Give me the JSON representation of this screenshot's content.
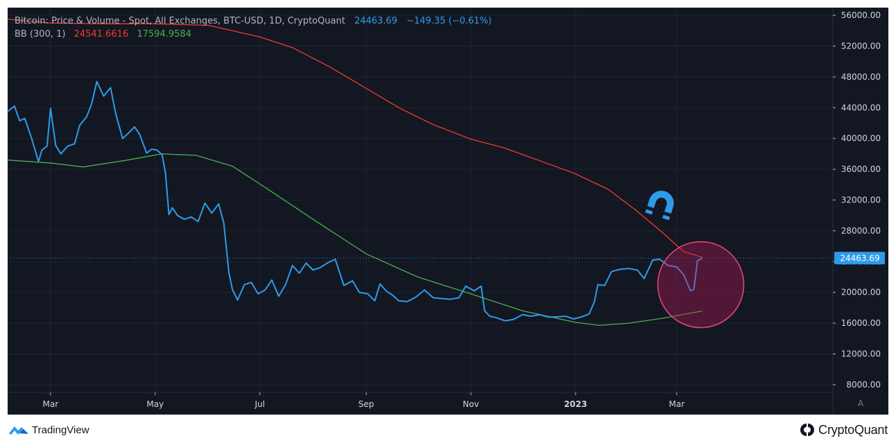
{
  "header": {
    "title": "Bitcoin: Price & Volume - Spot, All Exchanges, BTC-USD, 1D, CryptoQuant",
    "last_price": "24463.69",
    "change": "−149.35 (−0.61%)",
    "indicator_name": "BB (300, 1)",
    "upper_band_value": "24541.6616",
    "lower_band_value": "17594.9584"
  },
  "price_tag": "24463.69",
  "auto_scale_label": "A",
  "footer": {
    "tradingview_label": "TradingView",
    "cryptoquant_label": "CryptoQuant"
  },
  "colors": {
    "background": "#131722",
    "price_line": "#2e9bea",
    "upper_band": "#f23c2f",
    "lower_band": "#4caf50",
    "highlight": "#c2185b",
    "magnet": "#2e9bea"
  },
  "icons": [
    "magnet-icon",
    "tradingview-logo-icon",
    "cryptoquant-logo-icon"
  ],
  "chart_data": {
    "type": "line",
    "title": "Bitcoin: Price & Volume - Spot, All Exchanges, BTC-USD, 1D, CryptoQuant",
    "xlabel": "",
    "ylabel": "",
    "x_ticks": [
      "Mar",
      "May",
      "Jul",
      "Sep",
      "Nov",
      "2023",
      "Mar"
    ],
    "y_ticks": [
      "8000.00",
      "12000.00",
      "16000.00",
      "20000.00",
      "24000.00",
      "28000.00",
      "32000.00",
      "36000.00",
      "40000.00",
      "44000.00",
      "48000.00",
      "52000.00",
      "56000.00"
    ],
    "x_range": [
      "2022-02-04",
      "2023-05-31"
    ],
    "ylim": [
      7000,
      57000
    ],
    "grid": true,
    "legend": "top-left",
    "series": [
      {
        "name": "Price",
        "color": "#2e9bea",
        "x": [
          "2022-02-04",
          "2022-02-08",
          "2022-02-11",
          "2022-02-14",
          "2022-02-18",
          "2022-02-22",
          "2022-02-24",
          "2022-02-27",
          "2022-03-01",
          "2022-03-04",
          "2022-03-07",
          "2022-03-11",
          "2022-03-15",
          "2022-03-18",
          "2022-03-22",
          "2022-03-25",
          "2022-03-28",
          "2022-04-01",
          "2022-04-05",
          "2022-04-08",
          "2022-04-12",
          "2022-04-15",
          "2022-04-19",
          "2022-04-22",
          "2022-04-26",
          "2022-04-29",
          "2022-05-02",
          "2022-05-05",
          "2022-05-07",
          "2022-05-09",
          "2022-05-11",
          "2022-05-14",
          "2022-05-18",
          "2022-05-22",
          "2022-05-26",
          "2022-05-30",
          "2022-06-03",
          "2022-06-07",
          "2022-06-10",
          "2022-06-13",
          "2022-06-15",
          "2022-06-18",
          "2022-06-22",
          "2022-06-26",
          "2022-06-30",
          "2022-07-04",
          "2022-07-08",
          "2022-07-12",
          "2022-07-16",
          "2022-07-20",
          "2022-07-24",
          "2022-07-28",
          "2022-08-01",
          "2022-08-05",
          "2022-08-10",
          "2022-08-14",
          "2022-08-19",
          "2022-08-24",
          "2022-08-28",
          "2022-09-02",
          "2022-09-06",
          "2022-09-09",
          "2022-09-13",
          "2022-09-16",
          "2022-09-20",
          "2022-09-25",
          "2022-09-30",
          "2022-10-05",
          "2022-10-10",
          "2022-10-15",
          "2022-10-20",
          "2022-10-25",
          "2022-10-29",
          "2022-11-03",
          "2022-11-07",
          "2022-11-09",
          "2022-11-12",
          "2022-11-16",
          "2022-11-21",
          "2022-11-26",
          "2022-12-01",
          "2022-12-06",
          "2022-12-11",
          "2022-12-16",
          "2022-12-20",
          "2022-12-26",
          "2022-12-31",
          "2023-01-05",
          "2023-01-09",
          "2023-01-12",
          "2023-01-14",
          "2023-01-18",
          "2023-01-22",
          "2023-01-27",
          "2023-02-01",
          "2023-02-06",
          "2023-02-10",
          "2023-02-15",
          "2023-02-19",
          "2023-02-24",
          "2023-03-01",
          "2023-03-05",
          "2023-03-09",
          "2023-03-11",
          "2023-03-13",
          "2023-03-16"
        ],
        "y": [
          43500,
          44200,
          42300,
          42600,
          40000,
          37000,
          38500,
          39000,
          43900,
          39100,
          38000,
          39000,
          39300,
          41700,
          42800,
          44500,
          47400,
          45500,
          46600,
          43200,
          40000,
          40600,
          41500,
          40500,
          38100,
          38600,
          38500,
          37900,
          35500,
          30100,
          31000,
          30000,
          29500,
          29800,
          29200,
          31600,
          30300,
          31500,
          29000,
          22500,
          20400,
          19000,
          21000,
          21300,
          19800,
          20300,
          21600,
          19500,
          21000,
          23500,
          22500,
          23800,
          22900,
          23200,
          23900,
          24300,
          20900,
          21500,
          20000,
          19800,
          18900,
          21100,
          20100,
          19700,
          18900,
          18800,
          19400,
          20300,
          19300,
          19200,
          19100,
          19300,
          20800,
          20200,
          20800,
          17600,
          16900,
          16700,
          16300,
          16500,
          17100,
          16900,
          17100,
          16800,
          16800,
          16900,
          16550,
          16850,
          17200,
          18800,
          21000,
          20900,
          22700,
          23000,
          23100,
          22900,
          21800,
          24200,
          24300,
          23500,
          23300,
          22300,
          20200,
          20400,
          24100,
          24460
        ]
      },
      {
        "name": "BB (300, 1) upper",
        "color": "#f23c2f",
        "x": [
          "2022-02-04",
          "2022-03-01",
          "2022-04-01",
          "2022-05-01",
          "2022-06-01",
          "2022-07-01",
          "2022-07-20",
          "2022-08-10",
          "2022-09-01",
          "2022-09-20",
          "2022-10-10",
          "2022-11-01",
          "2022-11-20",
          "2022-12-10",
          "2022-12-31",
          "2023-01-20",
          "2023-02-05",
          "2023-02-20",
          "2023-03-05",
          "2023-03-16"
        ],
        "y": [
          55500,
          55000,
          54900,
          54900,
          54700,
          53200,
          51800,
          49400,
          46500,
          44000,
          41800,
          39900,
          38800,
          37200,
          35500,
          33400,
          30700,
          27900,
          25300,
          24540
        ]
      },
      {
        "name": "BB (300, 1) lower",
        "color": "#4caf50",
        "x": [
          "2022-02-04",
          "2022-03-01",
          "2022-03-20",
          "2022-04-15",
          "2022-05-05",
          "2022-05-25",
          "2022-06-15",
          "2022-07-05",
          "2022-08-01",
          "2022-09-01",
          "2022-10-01",
          "2022-11-01",
          "2022-12-01",
          "2023-01-01",
          "2023-01-15",
          "2023-02-01",
          "2023-02-20",
          "2023-03-16"
        ],
        "y": [
          37200,
          36800,
          36300,
          37200,
          38000,
          37800,
          36400,
          33500,
          29500,
          25000,
          22000,
          19800,
          17600,
          16100,
          15700,
          16000,
          16600,
          17590
        ]
      }
    ],
    "highlight_circle": {
      "center_x": "2023-03-15",
      "center_y": 21000,
      "label": ""
    }
  }
}
